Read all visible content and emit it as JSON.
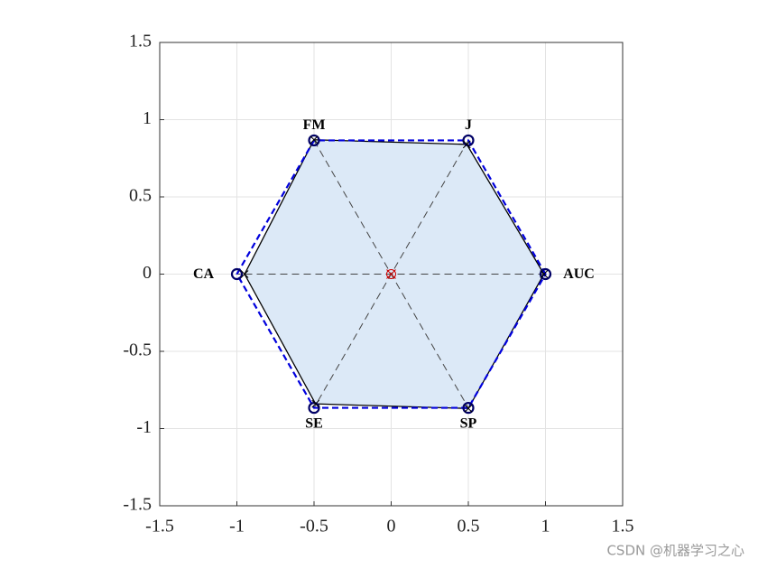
{
  "chart_data": {
    "type": "polygon",
    "categories": [
      "AUC",
      "J",
      "FM",
      "CA",
      "SE",
      "SP"
    ],
    "series": [
      {
        "color": "#0000dd",
        "dash": true,
        "marker": "circle",
        "x": [
          1,
          0.5,
          -0.5,
          -1,
          -0.5,
          0.5
        ],
        "values": [
          0,
          0.866,
          0.866,
          0,
          -0.866,
          -0.866
        ]
      },
      {
        "color": "#000000",
        "fill": "#dce9f7",
        "marker": "cross",
        "x": [
          0.99,
          0.49,
          -0.5,
          -0.95,
          -0.49,
          0.5
        ],
        "values": [
          0,
          0.84,
          0.87,
          0,
          -0.84,
          -0.87
        ]
      }
    ],
    "xlim": [
      -1.5,
      1.5
    ],
    "ylim": [
      -1.5,
      1.5
    ],
    "xticks": [
      -1.5,
      -1,
      -0.5,
      0,
      0.5,
      1,
      1.5
    ],
    "yticks": [
      -1.5,
      -1,
      -0.5,
      0,
      0.5,
      1,
      1.5
    ],
    "grid": true
  },
  "watermark": "CSDN @机器学习之心"
}
